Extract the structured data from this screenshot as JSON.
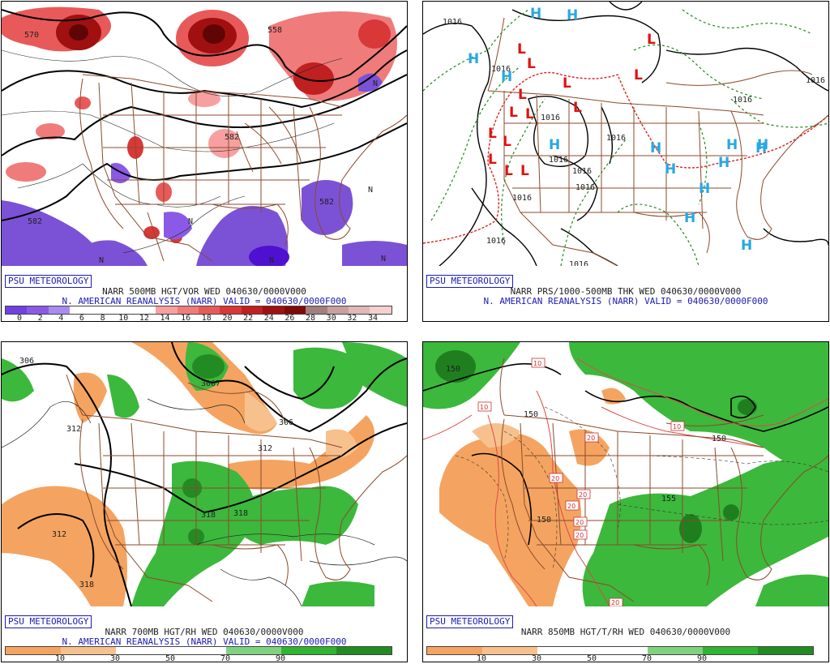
{
  "panels": [
    {
      "id": "p500",
      "badge": "PSU METEOROLOGY",
      "title": "NARR 500MB HGT/VOR WED 040630/0000V000",
      "subtitle": "N. AMERICAN REANALYSIS (NARR) VALID = 040630/0000F000",
      "legend_labels": [
        "0",
        "2",
        "4",
        "6",
        "8",
        "10",
        "12",
        "14",
        "16",
        "18",
        "20",
        "22",
        "24",
        "26",
        "28",
        "30",
        "32",
        "34"
      ],
      "legend_colors": [
        "#7040e0",
        "#8a5ae6",
        "#a98af0",
        "#ffffff",
        "#ffffff",
        "#ffffff",
        "#ffffff",
        "#f7a0a0",
        "#f07b7b",
        "#e85a5a",
        "#d83838",
        "#c02020",
        "#a01010",
        "#800808",
        "#a08080",
        "#c8a0a0",
        "#e0b8b8",
        "#f4d0d0"
      ],
      "contour_labels": [
        "570",
        "558",
        "582",
        "582",
        "582",
        "N",
        "N",
        "N",
        "N",
        "N",
        "N"
      ]
    },
    {
      "id": "psfc",
      "badge": "PSU METEOROLOGY",
      "title": "NARR PRS/1000-500MB THK WED 040630/0000V000",
      "subtitle": "N. AMERICAN REANALYSIS (NARR) VALID = 040630/0000F000",
      "contour_labels": [
        "1016",
        "1016",
        "1016",
        "1016",
        "1016",
        "1016",
        "1016",
        "1016",
        "1016",
        "1016",
        "1016",
        "1016"
      ],
      "highs": [
        "H",
        "H",
        "H",
        "H",
        "H",
        "H",
        "H",
        "H",
        "H",
        "H",
        "H",
        "H",
        "H",
        "H",
        "H",
        "H"
      ],
      "lows": [
        "L",
        "L",
        "L",
        "L",
        "L",
        "L",
        "L",
        "L",
        "L",
        "L",
        "L",
        "L",
        "L",
        "L"
      ]
    },
    {
      "id": "p700",
      "badge": "PSU METEOROLOGY",
      "title": "NARR 700MB HGT/RH WED 040630/0000V000",
      "subtitle": "N. AMERICAN REANALYSIS (NARR) VALID = 040630/0000F000",
      "legend_labels": [
        "10",
        "30",
        "50",
        "70",
        "90"
      ],
      "legend_colors": [
        "#f4a460",
        "#f7c18e",
        "#ffffff",
        "#ffffff",
        "#7fd37f",
        "#2fb52f",
        "#238b23"
      ],
      "contour_labels": [
        "306",
        "3007",
        "306",
        "312",
        "312",
        "312",
        "318",
        "318",
        "318"
      ]
    },
    {
      "id": "p850",
      "badge": "PSU METEOROLOGY",
      "title": "NARR 850MB HGT/T/RH WED 040630/0000V000",
      "subtitle": "",
      "legend_labels": [
        "10",
        "30",
        "50",
        "70",
        "90"
      ],
      "legend_colors": [
        "#f4a460",
        "#f7c18e",
        "#ffffff",
        "#ffffff",
        "#7fd37f",
        "#2fb52f",
        "#238b23"
      ],
      "contour_labels": [
        "150",
        "150",
        "150",
        "150",
        "155",
        "10",
        "10",
        "10",
        "20",
        "20",
        "20",
        "20",
        "20",
        "20",
        "20"
      ]
    }
  ],
  "colors": {
    "border": "#8b4a2b",
    "green": "#3cb83c",
    "darkgreen": "#1f7f1f",
    "orange": "#f4a460",
    "purple": "#7b52d6",
    "red": "#e04848",
    "darkred": "#7a0a0a",
    "blue_h": "#28a8e0",
    "red_l": "#e01010",
    "badge": "#1b1bb4"
  }
}
